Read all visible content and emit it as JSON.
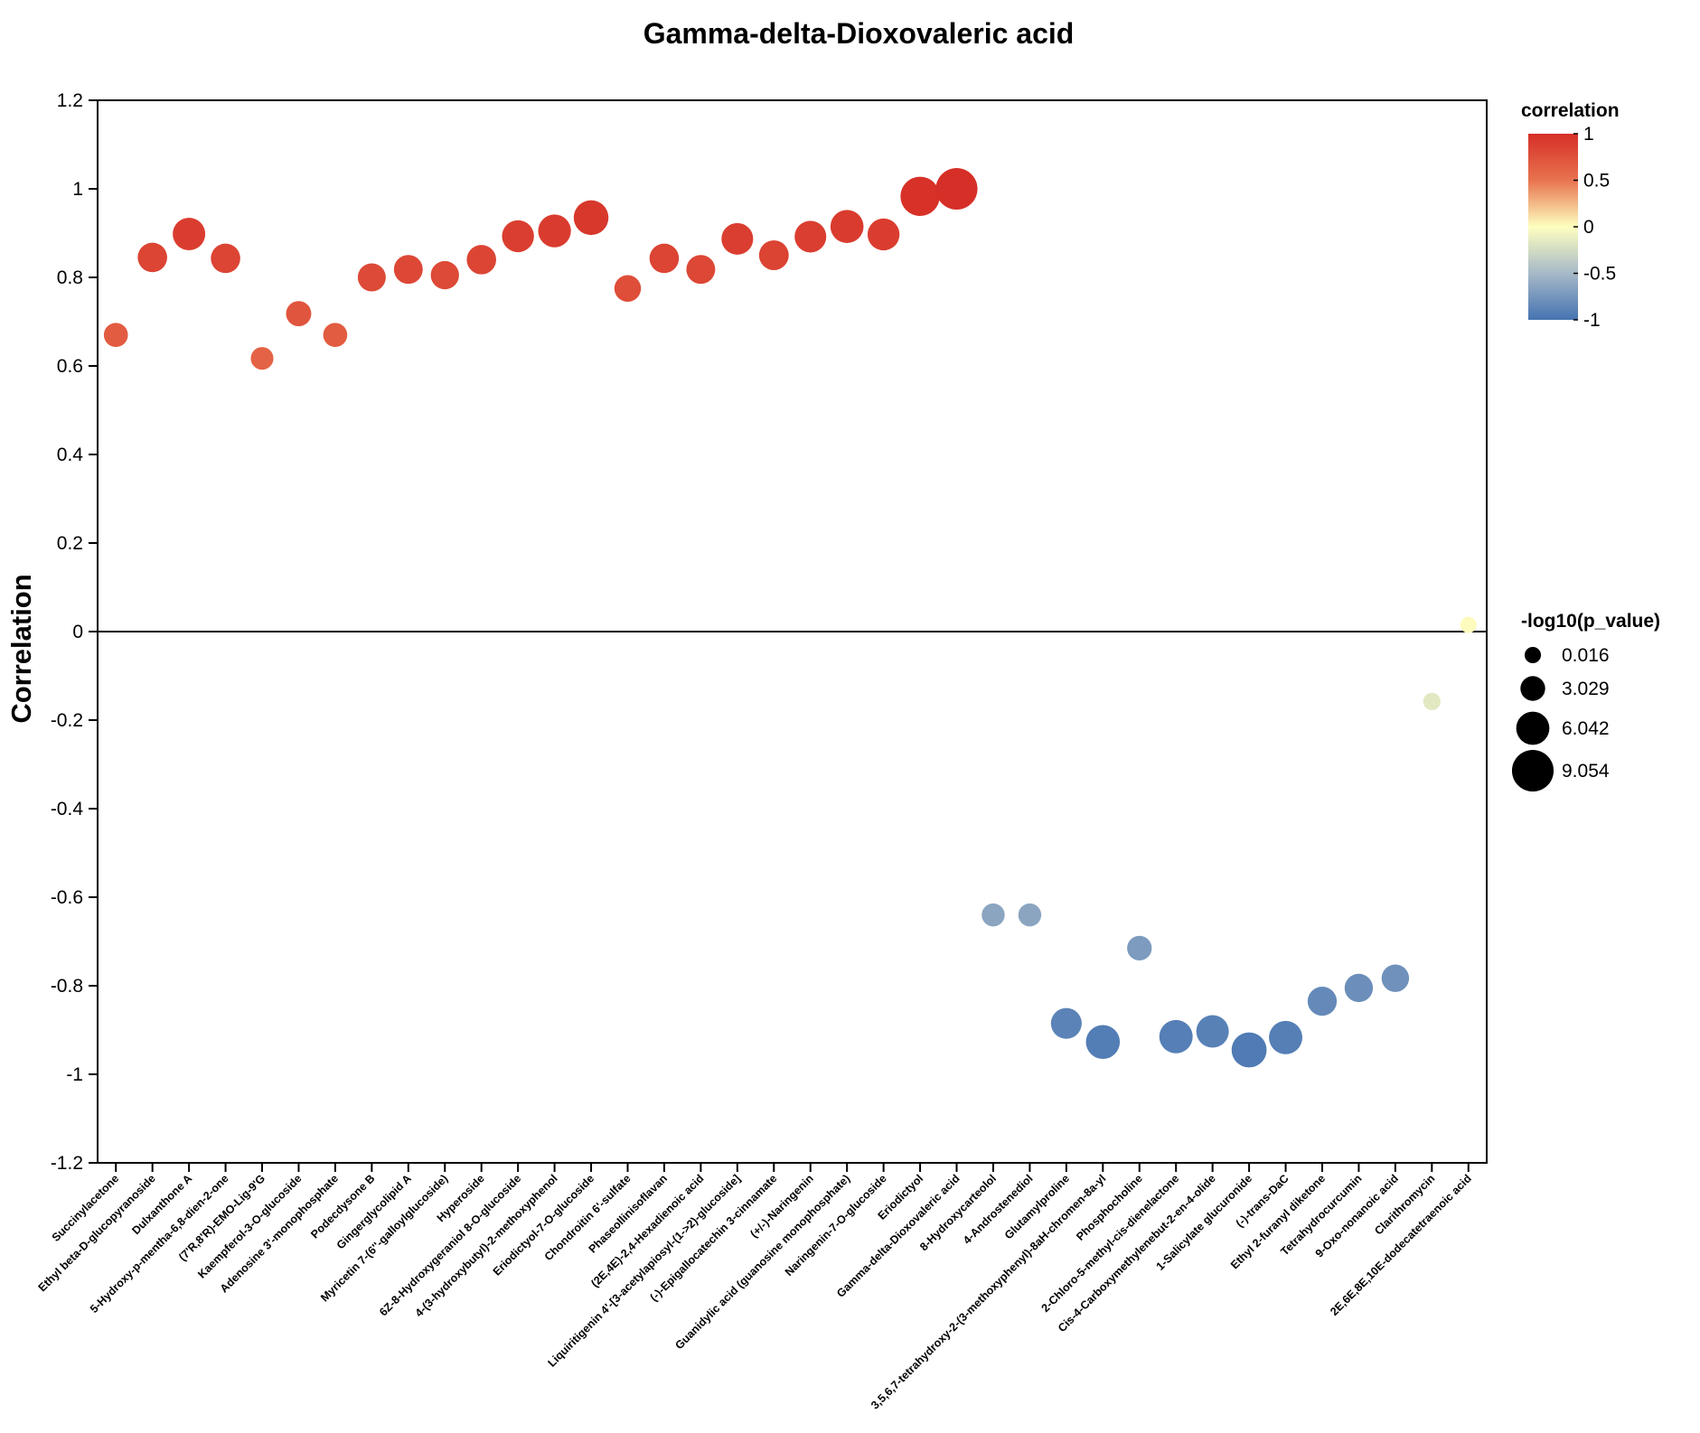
{
  "chart_data": {
    "type": "scatter",
    "title": "Gamma-delta-Dioxovaleric acid",
    "xlabel": "",
    "ylabel": "Correlation",
    "ylim": [
      -1.2,
      1.2
    ],
    "yticks": [
      1.2,
      1,
      0.8,
      0.6,
      0.4,
      0.2,
      0,
      -0.2,
      -0.4,
      -0.6,
      -0.8,
      -1,
      -1.2
    ],
    "ytick_labels": [
      "1.2",
      "1",
      "0.8",
      "0.6",
      "0.4",
      "0.2",
      "0",
      "-0.2",
      "-0.4",
      "-0.6",
      "-0.8",
      "-1",
      "-1.2"
    ],
    "reference_line": 0,
    "categories": [
      "Succinylacetone",
      "Ethyl beta-D-glucopyranoside",
      "Dulxanthone A",
      "5-Hydroxy-p-mentha-6,8-dien-2-one",
      "(7'R,8'R)-EMO-Lig-9'G",
      "Kaempferol-3-O-glucoside",
      "Adenosine 3'-monophosphate",
      "Podecdysone B",
      "Gingerglycolipid A",
      "Myricetin 7-(6''-galloylglucoside)",
      "Hyperoside",
      "6Z-8-Hydroxygeraniol 8-O-glucoside",
      "4-(3-hydroxybutyl)-2-methoxyphenol",
      "Eriodictyol-7-O-glucoside",
      "Chondroitin 6'-sulfate",
      "Phaseollinisoflavan",
      "(2E,4E)-2,4-Hexadienoic acid",
      "Liquiritigenin 4'-[3-acetylapiosyl-(1->2)-glucoside]",
      "(-)-Epigallocatechin 3-cinnamate",
      "(+/-)-Naringenin",
      "Guanidylic acid (guanosine monophosphate)",
      "Naringenin-7-O-glucoside",
      "Eriodictyol",
      "Gamma-delta-Dioxovaleric acid",
      "8-Hydroxycarteolol",
      "4-Androstenediol",
      "Glutamylproline",
      "3,5,6,7-tetrahydroxy-2-(3-methoxyphenyl)-8aH-chromen-8a-yl",
      "Phosphocholine",
      "2-Chloro-5-methyl-cis-dienelactone",
      "Cis-4-Carboxymethylenebut-2-en-4-olide",
      "1-Salicylate glucuronide",
      "(-)-trans-DaC",
      "Ethyl 2-furanyl diketone",
      "Tetrahydrocurcumin",
      "9-Oxo-nonanoic acid",
      "Clarithromycin",
      "2E,6E,8E,10E-dodecatetraenoic acid"
    ],
    "series": [
      {
        "name": "correlation",
        "values": [
          0.67,
          0.845,
          0.898,
          0.843,
          0.617,
          0.718,
          0.67,
          0.8,
          0.818,
          0.805,
          0.84,
          0.893,
          0.905,
          0.935,
          0.775,
          0.843,
          0.818,
          0.887,
          0.85,
          0.892,
          0.915,
          0.897,
          0.983,
          1.0,
          -0.64,
          -0.64,
          -0.885,
          -0.927,
          -0.715,
          -0.915,
          -0.903,
          -0.945,
          -0.917,
          -0.835,
          -0.805,
          -0.783,
          -0.158,
          0.015
        ]
      },
      {
        "name": "-log10(p_value)",
        "values": [
          2.8,
          4.7,
          5.8,
          4.7,
          2.3,
          3.2,
          2.8,
          4.2,
          4.5,
          4.3,
          4.7,
          5.6,
          5.9,
          6.6,
          3.7,
          4.7,
          4.5,
          5.5,
          4.8,
          5.5,
          6.0,
          5.6,
          8.2,
          9.054,
          2.4,
          2.4,
          5.2,
          6.3,
          3.0,
          6.1,
          5.8,
          6.7,
          6.1,
          4.6,
          4.3,
          4.0,
          0.4,
          0.016
        ]
      }
    ],
    "color_legend": {
      "title": "correlation",
      "range": [
        -1,
        1
      ],
      "tick_labels": [
        "1",
        "0.5",
        "0",
        "-0.5",
        "-1"
      ],
      "tick_values": [
        1,
        0.5,
        0,
        -0.5,
        -1
      ],
      "colors": [
        "#d62f27",
        "#e8734f",
        "#feffc0",
        "#a6b9c7",
        "#4573b2"
      ]
    },
    "size_legend": {
      "title": "-log10(p_value)",
      "values": [
        0.016,
        3.029,
        6.042,
        9.054
      ],
      "labels": [
        "0.016",
        "3.029",
        "6.042",
        "9.054"
      ]
    }
  }
}
